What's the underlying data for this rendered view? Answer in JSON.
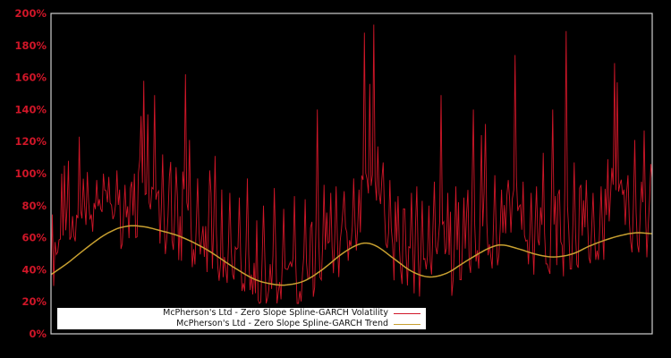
{
  "window": {
    "background": "#000000"
  },
  "chart_data": {
    "type": "line",
    "title": "",
    "xlabel": "",
    "ylabel": "",
    "ylim": [
      0,
      200
    ],
    "grid": false,
    "plot_background": "#000000",
    "frame_color": "#cfcfcf",
    "legend_position": "inside-bottom-left",
    "y_ticks": [
      {
        "value": 0,
        "label": "0%"
      },
      {
        "value": 20,
        "label": "20%"
      },
      {
        "value": 40,
        "label": "40%"
      },
      {
        "value": 60,
        "label": "60%"
      },
      {
        "value": 80,
        "label": "80%"
      },
      {
        "value": 100,
        "label": "100%"
      },
      {
        "value": 120,
        "label": "120%"
      },
      {
        "value": 140,
        "label": "140%"
      },
      {
        "value": 160,
        "label": "160%"
      },
      {
        "value": 180,
        "label": "180%"
      },
      {
        "value": 200,
        "label": "200%"
      }
    ],
    "tick_label_color": "#d01628",
    "series": [
      {
        "name": "McPherson's Ltd - Zero Slope Spline-GARCH Volatility",
        "color": "#d01628",
        "kind": "noisy-volatility"
      },
      {
        "name": "McPherson's Ltd - Zero Slope Spline-GARCH Trend",
        "color": "#c8a030",
        "kind": "smooth-trend"
      }
    ],
    "trend_points": [
      [
        0.0,
        37
      ],
      [
        0.027,
        44
      ],
      [
        0.057,
        53
      ],
      [
        0.086,
        61
      ],
      [
        0.109,
        65.5
      ],
      [
        0.124,
        67
      ],
      [
        0.138,
        67.5
      ],
      [
        0.16,
        66.5
      ],
      [
        0.176,
        65
      ],
      [
        0.213,
        61
      ],
      [
        0.257,
        53
      ],
      [
        0.302,
        42
      ],
      [
        0.339,
        34
      ],
      [
        0.369,
        31
      ],
      [
        0.391,
        30.5
      ],
      [
        0.421,
        33
      ],
      [
        0.451,
        40
      ],
      [
        0.488,
        51
      ],
      [
        0.518,
        56.5
      ],
      [
        0.54,
        55
      ],
      [
        0.57,
        47
      ],
      [
        0.6,
        39
      ],
      [
        0.629,
        35.5
      ],
      [
        0.659,
        38
      ],
      [
        0.689,
        45
      ],
      [
        0.726,
        53
      ],
      [
        0.748,
        55.5
      ],
      [
        0.778,
        53
      ],
      [
        0.808,
        49.5
      ],
      [
        0.838,
        48
      ],
      [
        0.868,
        50
      ],
      [
        0.897,
        55
      ],
      [
        0.934,
        60
      ],
      [
        0.971,
        63
      ],
      [
        1.0,
        62.5
      ]
    ],
    "volatility_spikes": [
      [
        0.018,
        100
      ],
      [
        0.022,
        105
      ],
      [
        0.03,
        108
      ],
      [
        0.048,
        123
      ],
      [
        0.06,
        101
      ],
      [
        0.076,
        96
      ],
      [
        0.088,
        100
      ],
      [
        0.097,
        98
      ],
      [
        0.11,
        102
      ],
      [
        0.124,
        93
      ],
      [
        0.135,
        95
      ],
      [
        0.149,
        136
      ],
      [
        0.155,
        158
      ],
      [
        0.162,
        137
      ],
      [
        0.173,
        149
      ],
      [
        0.185,
        112
      ],
      [
        0.196,
        98
      ],
      [
        0.207,
        104
      ],
      [
        0.223,
        162
      ],
      [
        0.231,
        121
      ],
      [
        0.244,
        97
      ],
      [
        0.263,
        102
      ],
      [
        0.274,
        111
      ],
      [
        0.298,
        88
      ],
      [
        0.314,
        85
      ],
      [
        0.327,
        97
      ],
      [
        0.354,
        80
      ],
      [
        0.372,
        91
      ],
      [
        0.388,
        78
      ],
      [
        0.406,
        86
      ],
      [
        0.423,
        84
      ],
      [
        0.442,
        140
      ],
      [
        0.455,
        93
      ],
      [
        0.466,
        88
      ],
      [
        0.475,
        92
      ],
      [
        0.488,
        89
      ],
      [
        0.503,
        97
      ],
      [
        0.512,
        90
      ],
      [
        0.522,
        188
      ],
      [
        0.53,
        156
      ],
      [
        0.536,
        193
      ],
      [
        0.543,
        117
      ],
      [
        0.552,
        107
      ],
      [
        0.564,
        96
      ],
      [
        0.577,
        86
      ],
      [
        0.588,
        78
      ],
      [
        0.6,
        88
      ],
      [
        0.609,
        92
      ],
      [
        0.618,
        83
      ],
      [
        0.628,
        80
      ],
      [
        0.638,
        95
      ],
      [
        0.649,
        149
      ],
      [
        0.661,
        88
      ],
      [
        0.674,
        92
      ],
      [
        0.686,
        85
      ],
      [
        0.702,
        140
      ],
      [
        0.716,
        124
      ],
      [
        0.723,
        131
      ],
      [
        0.738,
        99
      ],
      [
        0.75,
        90
      ],
      [
        0.76,
        96
      ],
      [
        0.772,
        174
      ],
      [
        0.786,
        95
      ],
      [
        0.798,
        88
      ],
      [
        0.808,
        92
      ],
      [
        0.818,
        113
      ],
      [
        0.835,
        140
      ],
      [
        0.845,
        90
      ],
      [
        0.856,
        189
      ],
      [
        0.871,
        107
      ],
      [
        0.882,
        93
      ],
      [
        0.89,
        96
      ],
      [
        0.902,
        88
      ],
      [
        0.915,
        92
      ],
      [
        0.927,
        109
      ],
      [
        0.938,
        169
      ],
      [
        0.942,
        157
      ],
      [
        0.952,
        90
      ],
      [
        0.96,
        99
      ],
      [
        0.972,
        121
      ],
      [
        0.981,
        95
      ],
      [
        0.987,
        127
      ],
      [
        0.999,
        97
      ]
    ],
    "noise_model": {
      "seed": 7,
      "samples": 448,
      "below_band": 16,
      "above_band": 16,
      "spike_band": 46,
      "min_value": 19,
      "max_value": 195.5,
      "elevated_regions": [
        [
          0.005,
          0.116,
          28
        ],
        [
          0.515,
          0.555,
          50
        ],
        [
          0.634,
          0.66,
          35
        ],
        [
          0.757,
          0.784,
          35
        ],
        [
          0.93,
          0.95,
          40
        ]
      ]
    }
  },
  "legend": {
    "items": [
      {
        "label": "McPherson's Ltd - Zero Slope Spline-GARCH Volatility",
        "color": "#d0182a"
      },
      {
        "label": "McPherson's Ltd - Zero Slope Spline-GARCH Trend",
        "color": "#c8a030"
      }
    ]
  }
}
